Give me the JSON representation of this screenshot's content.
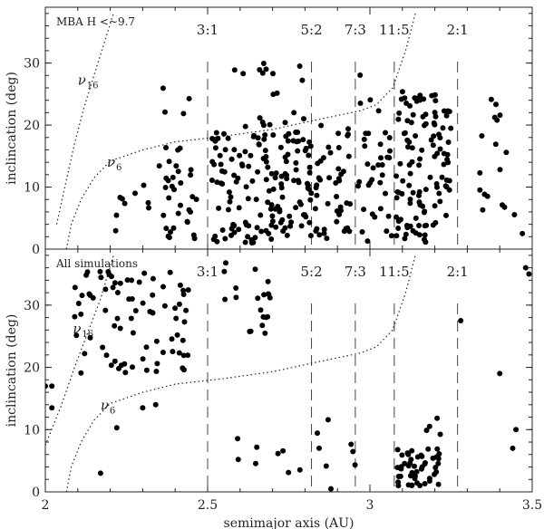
{
  "chart_data": [
    {
      "type": "scatter",
      "title": "MBA H <~9.7",
      "xlabel": "",
      "ylabel": "inclincation (deg)",
      "xlim": [
        2.0,
        3.5
      ],
      "ylim": [
        0,
        39
      ],
      "yticks": [
        0,
        10,
        20,
        30
      ],
      "resonances": [
        {
          "label": "3:1",
          "x": 2.5
        },
        {
          "label": "5:2",
          "x": 2.82
        },
        {
          "label": "7:3",
          "x": 2.955
        },
        {
          "label": "11:5",
          "x": 3.075
        },
        {
          "label": "2:1",
          "x": 3.27
        }
      ],
      "curves": [
        {
          "name": "ν16",
          "sym": "ν",
          "sub": "16",
          "label_at": [
            2.1,
            26.5
          ],
          "points": [
            [
              2.035,
              4
            ],
            [
              2.06,
              10
            ],
            [
              2.09,
              17
            ],
            [
              2.12,
              23
            ],
            [
              2.15,
              28
            ],
            [
              2.18,
              33
            ],
            [
              2.21,
              38
            ]
          ]
        },
        {
          "name": "ν6",
          "sym": "ν",
          "sub": "6",
          "label_at": [
            2.19,
            13.3
          ],
          "points": [
            [
              2.065,
              0
            ],
            [
              2.08,
              4
            ],
            [
              2.11,
              8
            ],
            [
              2.15,
              11.5
            ],
            [
              2.2,
              14.2
            ],
            [
              2.3,
              16
            ],
            [
              2.4,
              17.3
            ],
            [
              2.55,
              18.2
            ],
            [
              2.7,
              19.3
            ],
            [
              2.85,
              21
            ],
            [
              2.97,
              22.3
            ],
            [
              3.02,
              23.3
            ],
            [
              3.07,
              26
            ],
            [
              3.11,
              32
            ],
            [
              3.14,
              38
            ]
          ]
        }
      ],
      "points_seed": 17,
      "clusters": [
        {
          "n": 30,
          "x": [
            2.35,
            2.48
          ],
          "y": [
            1,
            17
          ]
        },
        {
          "n": 9,
          "x": [
            2.2,
            2.32
          ],
          "y": [
            2,
            12
          ]
        },
        {
          "n": 7,
          "x": [
            2.36,
            2.46
          ],
          "y": [
            15,
            26
          ]
        },
        {
          "n": 150,
          "x": [
            2.51,
            2.82
          ],
          "y": [
            1,
            19
          ]
        },
        {
          "n": 22,
          "x": [
            2.58,
            2.8
          ],
          "y": [
            18,
            30
          ]
        },
        {
          "n": 45,
          "x": [
            2.83,
            2.95
          ],
          "y": [
            1,
            20
          ]
        },
        {
          "n": 32,
          "x": [
            2.96,
            3.07
          ],
          "y": [
            1,
            19
          ]
        },
        {
          "n": 4,
          "x": [
            2.96,
            3.03
          ],
          "y": [
            22,
            29
          ]
        },
        {
          "n": 115,
          "x": [
            3.08,
            3.25
          ],
          "y": [
            1,
            26
          ]
        },
        {
          "n": 14,
          "x": [
            3.33,
            3.47
          ],
          "y": [
            2,
            22
          ]
        },
        {
          "n": 4,
          "x": [
            3.37,
            3.44
          ],
          "y": [
            19,
            26
          ]
        }
      ]
    },
    {
      "type": "scatter",
      "title": "All simulations",
      "xlabel": "semimajor axis (AU)",
      "ylabel": "inclincation (deg)",
      "xlim": [
        2.0,
        3.5
      ],
      "ylim": [
        0,
        39
      ],
      "xticks": [
        2,
        2.5,
        3,
        3.5
      ],
      "xticklabels": [
        "2",
        "2.5",
        "3",
        "3.5"
      ],
      "yticks": [
        0,
        10,
        20,
        30
      ],
      "resonances": [
        {
          "label": "3:1",
          "x": 2.5
        },
        {
          "label": "5:2",
          "x": 2.82
        },
        {
          "label": "7:3",
          "x": 2.955
        },
        {
          "label": "11:5",
          "x": 3.075
        },
        {
          "label": "2:1",
          "x": 3.27
        }
      ],
      "curves": [
        {
          "name": "ν16",
          "sym": "ν",
          "sub": "16",
          "label_at": [
            2.085,
            25.5
          ],
          "points": [
            [
              2.0,
              7.5
            ],
            [
              2.05,
              14
            ],
            [
              2.09,
              20
            ],
            [
              2.13,
              25.5
            ],
            [
              2.17,
              31
            ],
            [
              2.21,
              38
            ]
          ]
        },
        {
          "name": "ν6",
          "sym": "ν",
          "sub": "6",
          "label_at": [
            2.17,
            13.2
          ],
          "points": [
            [
              2.065,
              0
            ],
            [
              2.08,
              4
            ],
            [
              2.11,
              8
            ],
            [
              2.15,
              11.5
            ],
            [
              2.2,
              14.2
            ],
            [
              2.3,
              16
            ],
            [
              2.4,
              17.3
            ],
            [
              2.55,
              18.2
            ],
            [
              2.7,
              19.3
            ],
            [
              2.85,
              21
            ],
            [
              2.97,
              22.3
            ],
            [
              3.02,
              23.3
            ],
            [
              3.07,
              26
            ],
            [
              3.11,
              32
            ],
            [
              3.14,
              38
            ]
          ]
        }
      ],
      "points_seed": 29,
      "clusters": [
        {
          "n": 80,
          "x": [
            2.08,
            2.45
          ],
          "y": [
            19,
            36
          ]
        },
        {
          "n": 20,
          "x": [
            2.55,
            2.75
          ],
          "y": [
            23,
            37
          ]
        },
        {
          "n": 10,
          "x": [
            2.57,
            2.85
          ],
          "y": [
            2,
            10
          ]
        },
        {
          "n": 5,
          "x": [
            2.86,
            2.98
          ],
          "y": [
            2,
            12
          ]
        },
        {
          "n": 50,
          "x": [
            3.08,
            3.22
          ],
          "y": [
            1,
            7
          ]
        },
        {
          "n": 4,
          "x": [
            3.17,
            3.22
          ],
          "y": [
            8,
            13
          ]
        }
      ],
      "points": [
        [
          2.0,
          17
        ],
        [
          2.02,
          17
        ],
        [
          2.02,
          13.5
        ],
        [
          2.3,
          13.5
        ],
        [
          2.34,
          14
        ],
        [
          2.22,
          10.3
        ],
        [
          2.17,
          3
        ],
        [
          2.88,
          0.5
        ],
        [
          3.28,
          27.5
        ],
        [
          3.4,
          19
        ],
        [
          3.45,
          10
        ],
        [
          3.44,
          7
        ],
        [
          3.48,
          36
        ],
        [
          3.49,
          35
        ]
      ]
    }
  ]
}
